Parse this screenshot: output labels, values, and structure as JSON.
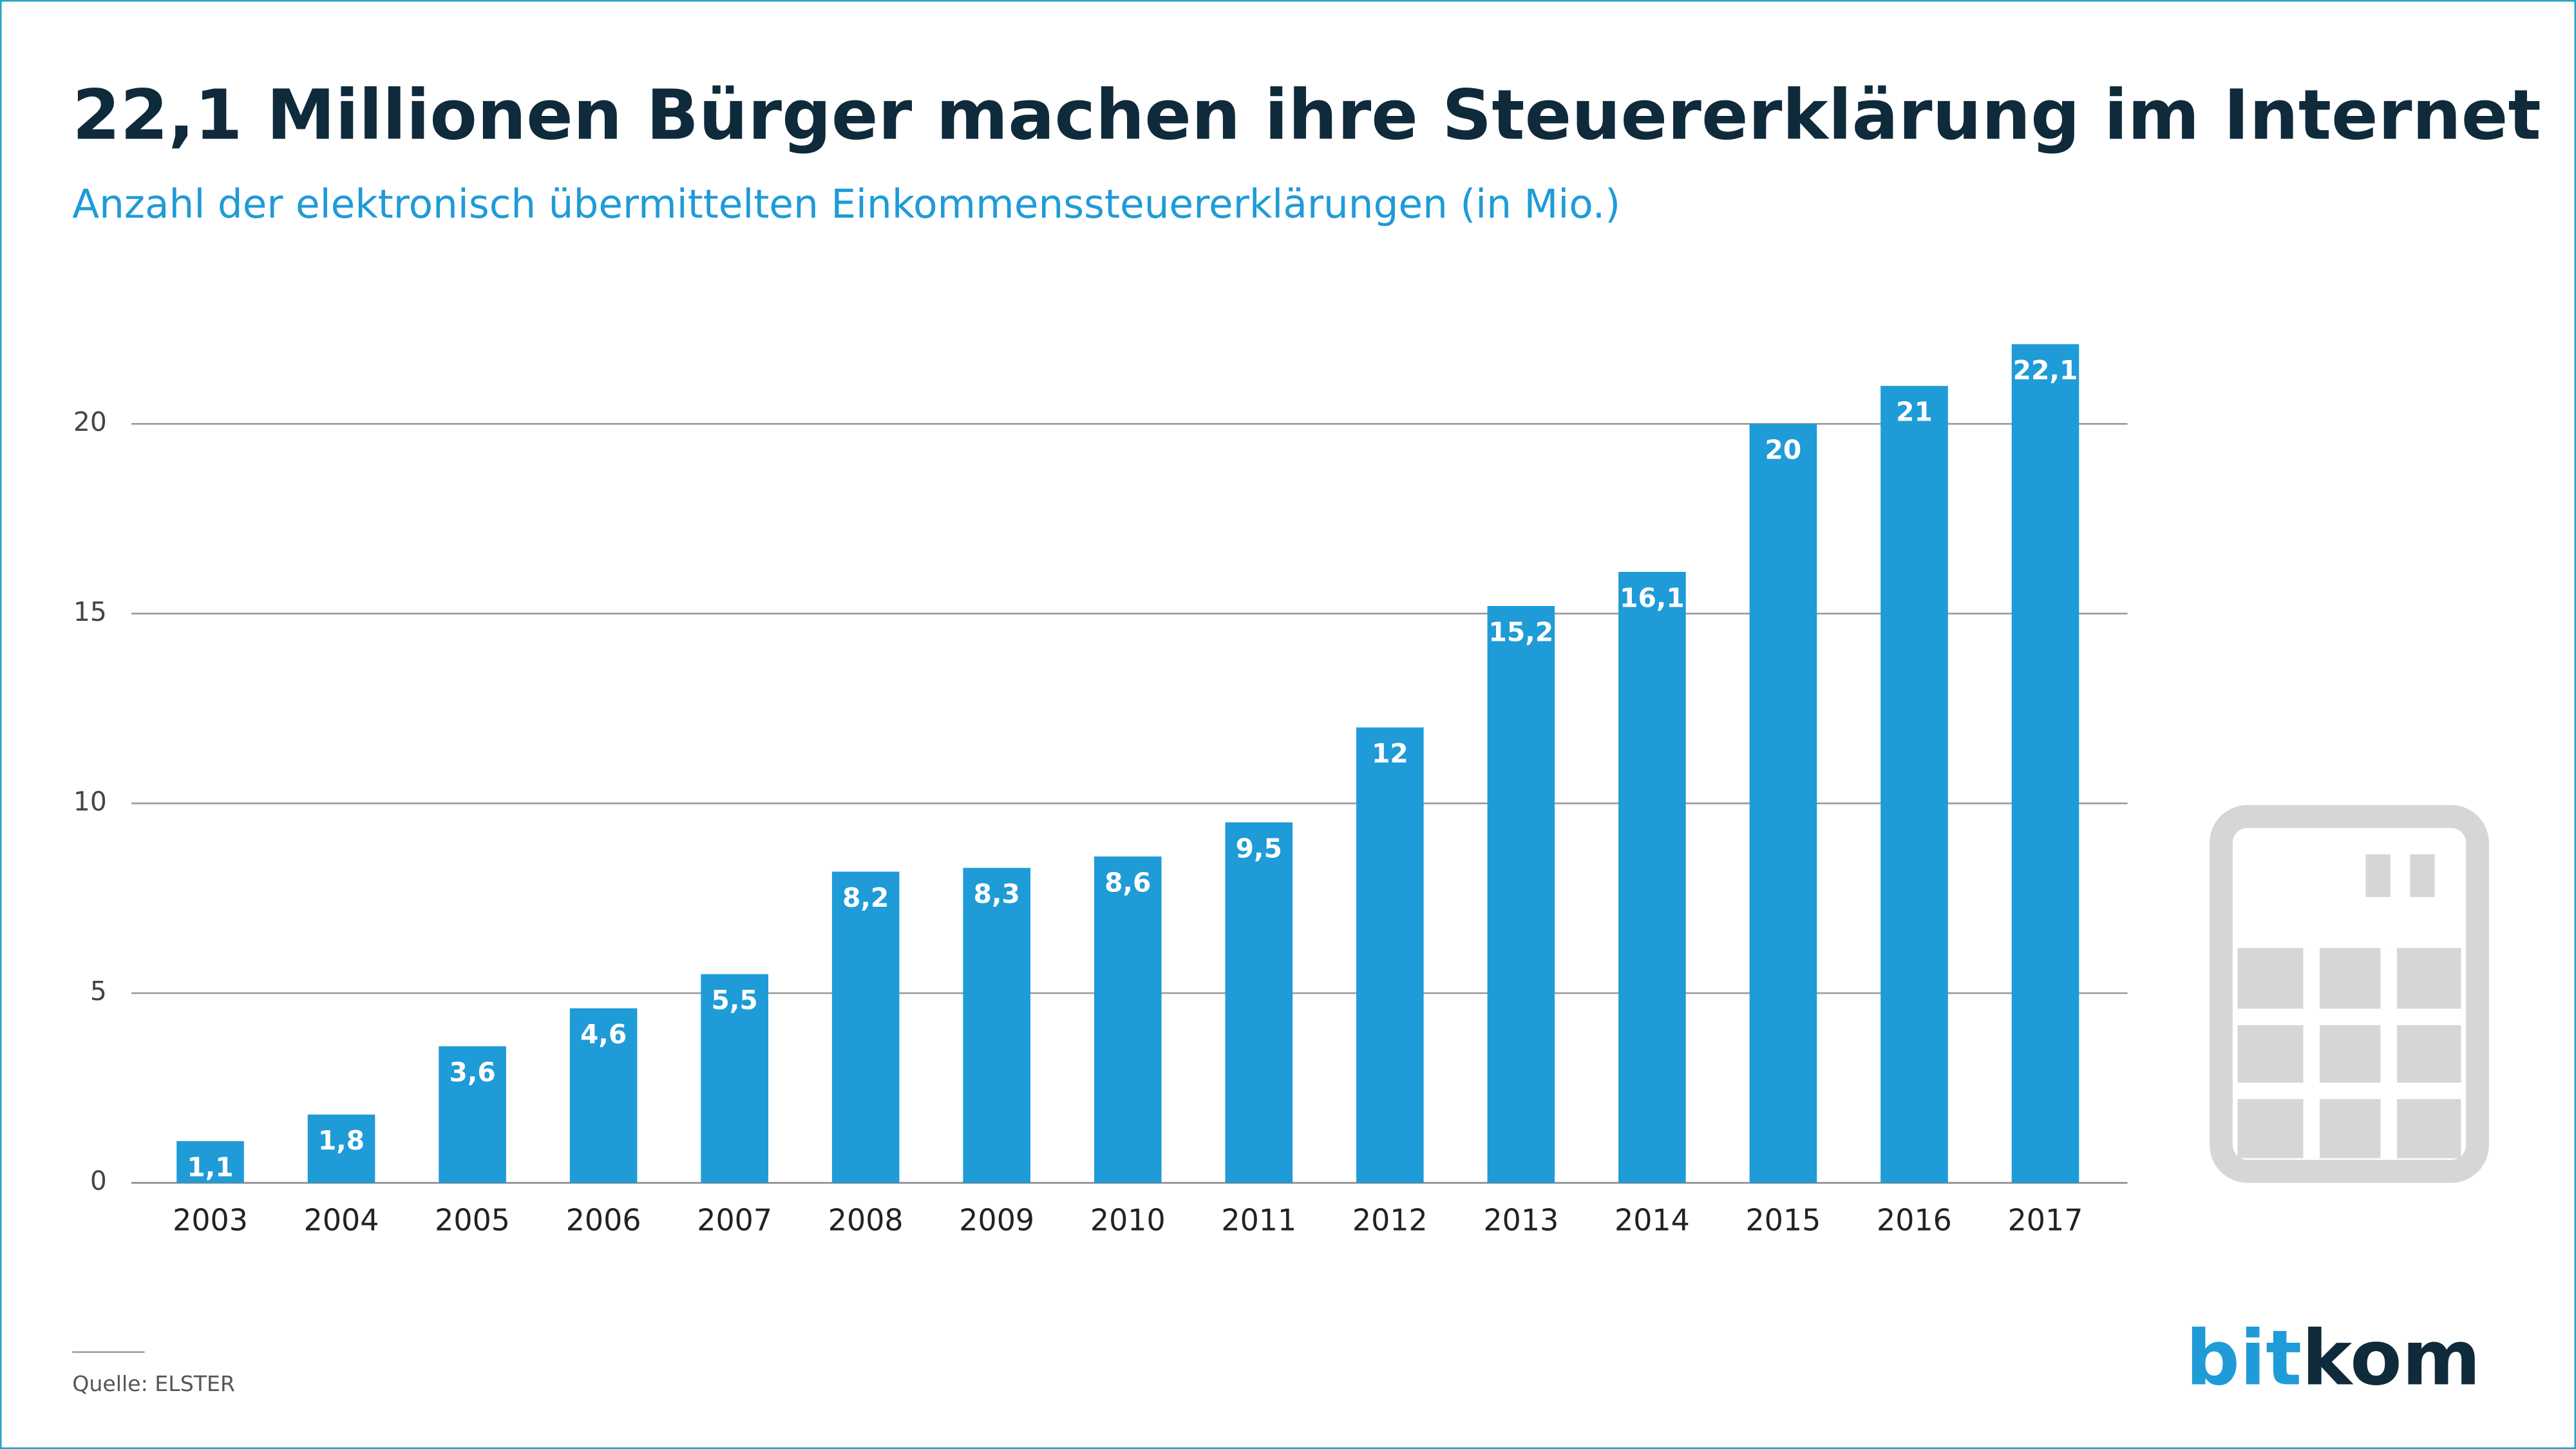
{
  "chart_data": {
    "type": "bar",
    "title": "22,1 Millionen Bürger machen ihre Steuererklärung im Internet",
    "subtitle": "Anzahl der elektronisch übermittelten Einkommenssteuererklärungen (in Mio.)",
    "categories": [
      "2003",
      "2004",
      "2005",
      "2006",
      "2007",
      "2008",
      "2009",
      "2010",
      "2011",
      "2012",
      "2013",
      "2014",
      "2015",
      "2016",
      "2017"
    ],
    "values": [
      1.1,
      1.8,
      3.6,
      4.6,
      5.5,
      8.2,
      8.3,
      8.6,
      9.5,
      12,
      15.2,
      16.1,
      20,
      21,
      22.1
    ],
    "value_labels": [
      "1,1",
      "1,8",
      "3,6",
      "4,6",
      "5,5",
      "8,2",
      "8,3",
      "8,6",
      "9,5",
      "12",
      "15,2",
      "16,1",
      "20",
      "21",
      "22,1"
    ],
    "color": "#1f9bd7",
    "ylim": [
      0,
      22.5
    ],
    "yticks": [
      0,
      5,
      10,
      15,
      20
    ],
    "grid": true,
    "source": "Quelle: ELSTER",
    "logo": [
      "bit",
      "kom"
    ]
  }
}
